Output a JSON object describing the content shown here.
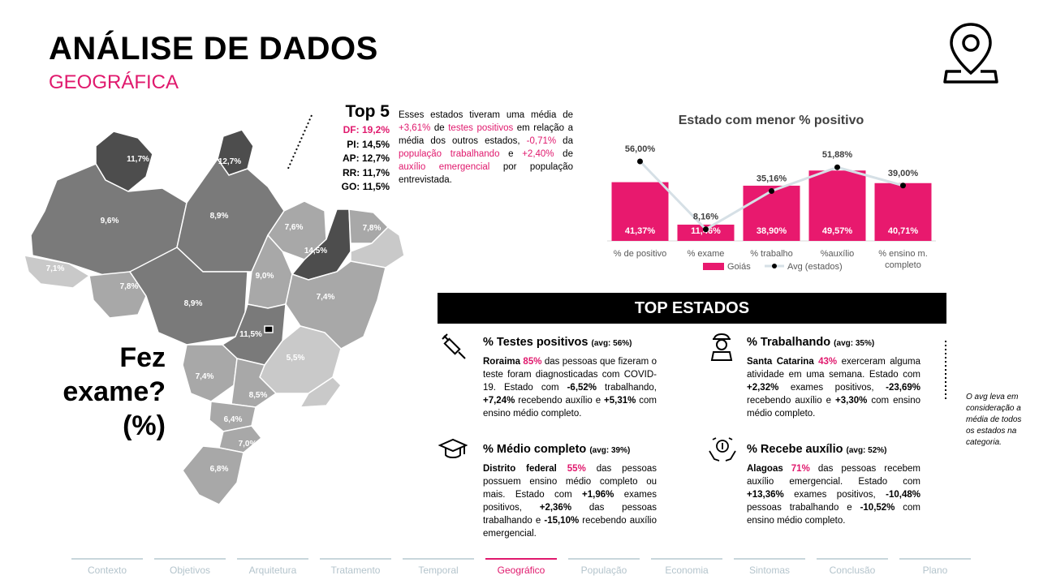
{
  "header": {
    "title": "ANÁLISE DE DADOS",
    "subtitle": "GEOGRÁFICA",
    "icon": "map-pin-icon"
  },
  "top5": {
    "heading": "Top 5",
    "items": [
      {
        "label": "DF: 19,2%",
        "highlight": true
      },
      {
        "label": "PI: 14,5%",
        "highlight": false
      },
      {
        "label": "AP: 12,7%",
        "highlight": false
      },
      {
        "label": "RR: 11,7%",
        "highlight": false
      },
      {
        "label": "GO: 11,5%",
        "highlight": false
      }
    ]
  },
  "summary": {
    "p1": "Esses estados tiveram uma média de ",
    "v1": "+3,61%",
    "p2": " de ",
    "h1": "testes positivos",
    "p3": " em relação a média dos outros estados, ",
    "v2": "-0,71%",
    "p4": " da ",
    "h2": "população trabalhando",
    "p5": " e ",
    "v3": "+2,40%",
    "p6": " de ",
    "h3": "auxílio emergencial",
    "p7": " por população entrevistada."
  },
  "map": {
    "question_lines": [
      "Fez",
      "exame?",
      "(%)"
    ],
    "labels": [
      "11,7%",
      "12,7%",
      "9,6%",
      "8,9%",
      "7,6%",
      "7,8%",
      "14,5%",
      "7,1%",
      "7,8%",
      "9,0%",
      "7,4%",
      "8,9%",
      "11,5%",
      "5,5%",
      "7,4%",
      "8,5%",
      "6,4%",
      "7,0%",
      "6,8%"
    ],
    "colors": {
      "dark": "#4a4a4a",
      "mid": "#7a7a7a",
      "light": "#a8a8a8",
      "lighter": "#c9c9c9"
    }
  },
  "chart_data": {
    "type": "bar",
    "title": "Estado com menor % positivo",
    "categories": [
      "% de positivo",
      "% exame",
      "% trabalho",
      "%auxílio",
      "% ensino m. completo"
    ],
    "tick_labels": [
      [
        "% de positivo"
      ],
      [
        "% exame"
      ],
      [
        "% trabalho"
      ],
      [
        "%auxílio"
      ],
      [
        "% ensino m.",
        "completo"
      ]
    ],
    "series": [
      {
        "name": "Goiás",
        "kind": "bar",
        "color": "#e8196e",
        "values": [
          41.37,
          11.46,
          38.9,
          49.57,
          40.71
        ],
        "labels": [
          "41,37%",
          "11,46%",
          "38,90%",
          "49,57%",
          "40,71%"
        ]
      },
      {
        "name": "Avg (estados)",
        "kind": "line",
        "color": "#d6e0e6",
        "values": [
          56.0,
          8.16,
          35.16,
          51.88,
          39.0
        ],
        "labels": [
          "56,00%",
          "8,16%",
          "35,16%",
          "51,88%",
          "39,00%"
        ]
      }
    ],
    "ylim": [
      0,
      60
    ],
    "legend": "bottom"
  },
  "top_estados": {
    "banner": "TOP ESTADOS",
    "cards": [
      {
        "icon": "syringe-icon",
        "title": "% Testes positivos",
        "avg": "(avg: 56%)",
        "state": "Roraima",
        "pct": "85%",
        "t1": " das pessoas que fizeram o teste foram diagnosticadas com COVID-19. Estado com ",
        "b1": "-6,52%",
        "t2": " trabalhando, ",
        "b2": "+7,24%",
        "t3": " recebendo auxílio e ",
        "b3": "+5,31%",
        "t4": " com ensino médio completo."
      },
      {
        "icon": "worker-icon",
        "title": "% Trabalhando",
        "avg": "(avg: 35%)",
        "state": "Santa Catarina",
        "pct": "43%",
        "t1": " exerceram alguma atividade em uma semana. Estado com ",
        "b1": "+2,32%",
        "t2": " exames positivos, ",
        "b2": "-23,69%",
        "t3": " recebendo auxílio e ",
        "b3": "+3,30%",
        "t4": " com ensino médio completo."
      },
      {
        "icon": "graduation-cap-icon",
        "title": "% Médio completo",
        "avg": "(avg: 39%)",
        "state": "Distrito federal",
        "pct": "55%",
        "t1": " das pessoas possuem ensino médio completo ou mais. Estado com ",
        "b1": "+1,96%",
        "t2": " exames positivos, ",
        "b2": "+2,36%",
        "t3": " das pessoas trabalhando e ",
        "b3": "-15,10%",
        "t4": " recebendo auxílio emergencial."
      },
      {
        "icon": "money-hands-icon",
        "title": "% Recebe auxílio",
        "avg": "(avg: 52%)",
        "state": "Alagoas",
        "pct": "71%",
        "t1": " das pessoas recebem auxílio emergencial. Estado com ",
        "b1": "+13,36%",
        "t2": " exames positivos, ",
        "b2": "-10,48%",
        "t3": " pessoas trabalhando e ",
        "b3": "-10,52%",
        "t4": " com ensino médio completo."
      }
    ],
    "note": "O avg leva em consideração a média de todos os estados na categoria."
  },
  "nav": {
    "items": [
      "Contexto",
      "Objetivos",
      "Arquitetura",
      "Tratamento",
      "Temporal",
      "Geográfico",
      "População",
      "Economia",
      "Sintomas",
      "Conclusão",
      "Plano"
    ],
    "active": "Geográfico"
  }
}
